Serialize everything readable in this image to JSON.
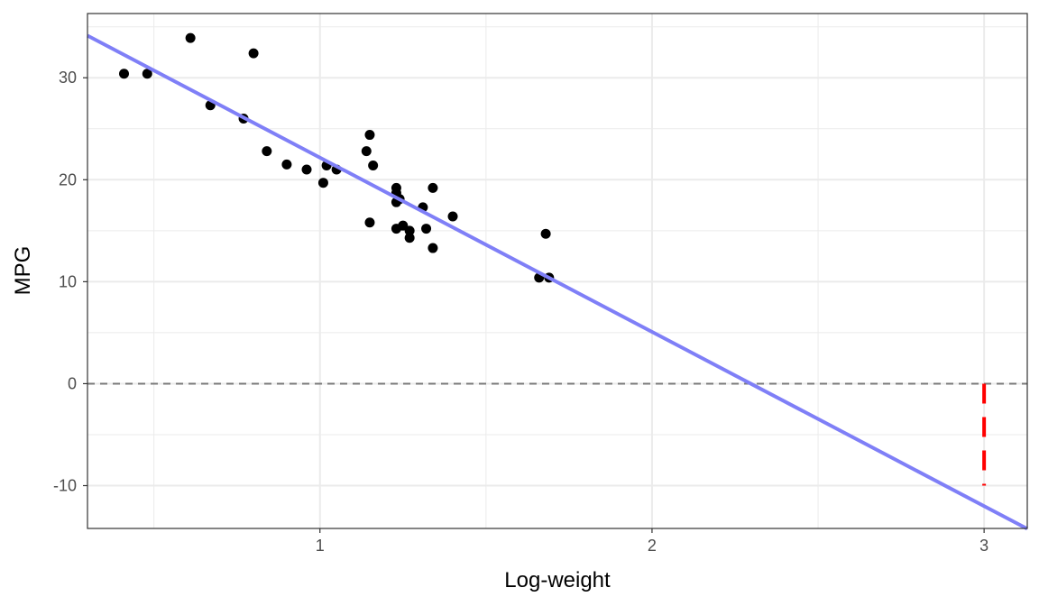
{
  "chart_data": {
    "type": "scatter",
    "title": "",
    "xlabel": "Log-weight",
    "ylabel": "MPG",
    "xlim": [
      0.3,
      3.13
    ],
    "ylim": [
      -14.2,
      36.3
    ],
    "x_ticks": [
      1,
      2,
      3
    ],
    "x_tick_labels": [
      "1",
      "2",
      "3"
    ],
    "x_minor_ticks": [
      0.5,
      1.5,
      2.5
    ],
    "y_ticks": [
      -10,
      0,
      10,
      20,
      30
    ],
    "y_tick_labels": [
      "-10",
      "0",
      "10",
      "20",
      "30"
    ],
    "y_minor_ticks": [
      -5,
      5,
      15,
      25,
      35
    ],
    "grid": true,
    "legend": "none",
    "points": [
      {
        "x": 0.41,
        "y": 30.4
      },
      {
        "x": 0.48,
        "y": 30.4
      },
      {
        "x": 0.61,
        "y": 33.9
      },
      {
        "x": 0.67,
        "y": 27.3
      },
      {
        "x": 0.77,
        "y": 26.0
      },
      {
        "x": 0.8,
        "y": 32.4
      },
      {
        "x": 0.84,
        "y": 22.8
      },
      {
        "x": 0.9,
        "y": 21.5
      },
      {
        "x": 0.96,
        "y": 21.0
      },
      {
        "x": 1.01,
        "y": 19.7
      },
      {
        "x": 1.02,
        "y": 21.4
      },
      {
        "x": 1.05,
        "y": 21.0
      },
      {
        "x": 1.14,
        "y": 22.8
      },
      {
        "x": 1.15,
        "y": 15.8
      },
      {
        "x": 1.15,
        "y": 24.4
      },
      {
        "x": 1.16,
        "y": 21.4
      },
      {
        "x": 1.23,
        "y": 19.2
      },
      {
        "x": 1.23,
        "y": 18.7
      },
      {
        "x": 1.23,
        "y": 17.8
      },
      {
        "x": 1.24,
        "y": 18.1
      },
      {
        "x": 1.23,
        "y": 15.2
      },
      {
        "x": 1.25,
        "y": 15.5
      },
      {
        "x": 1.27,
        "y": 15.0
      },
      {
        "x": 1.27,
        "y": 14.3
      },
      {
        "x": 1.31,
        "y": 17.3
      },
      {
        "x": 1.32,
        "y": 15.2
      },
      {
        "x": 1.34,
        "y": 19.2
      },
      {
        "x": 1.34,
        "y": 13.3
      },
      {
        "x": 1.4,
        "y": 16.4
      },
      {
        "x": 1.66,
        "y": 10.4
      },
      {
        "x": 1.68,
        "y": 14.7
      },
      {
        "x": 1.69,
        "y": 10.4
      }
    ],
    "fit_line": {
      "intercept": 39.26,
      "slope": -17.09,
      "color": "#7f7ff7"
    },
    "reference_line": {
      "y": 0,
      "color": "#7a7a7a",
      "style": "dashed"
    },
    "prediction_segment": {
      "x": 3,
      "y_from": 0,
      "y_to": -10,
      "color": "#ff0000",
      "style": "dashed"
    },
    "colors": {
      "points": "#000000",
      "grid": "#ebebeb",
      "panel_border": "#333333"
    }
  }
}
